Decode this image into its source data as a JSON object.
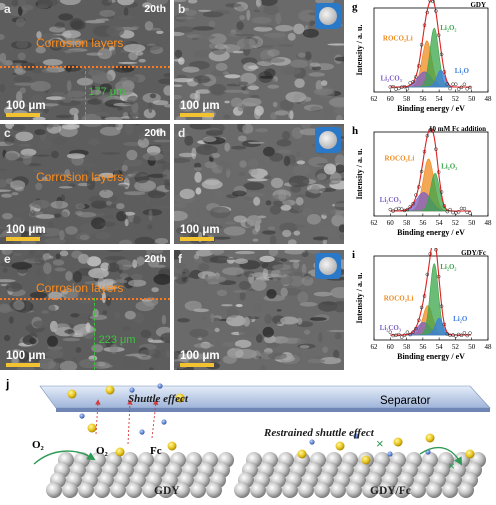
{
  "sem_panels": [
    {
      "label": "a",
      "cycle": "20th",
      "corrosion": "Corrosion layers",
      "thickness": "177 μm",
      "scale": "100 μm"
    },
    {
      "label": "b",
      "scale": "100 μm"
    },
    {
      "label": "c",
      "cycle": "20th",
      "corrosion": "Corrosion layers",
      "scale": "100 μm"
    },
    {
      "label": "d",
      "scale": "100 μm"
    },
    {
      "label": "e",
      "cycle": "20th",
      "corrosion": "Corrosion layers",
      "thickness": "223 μm",
      "scale": "100 μm"
    },
    {
      "label": "f",
      "scale": "100 μm"
    }
  ],
  "xps_panels": [
    {
      "label": "g",
      "condition": "GDY",
      "peaks": [
        "ROCO₂Li",
        "Li₂CO₃",
        "Li₂O₂",
        "Li₂O"
      ]
    },
    {
      "label": "h",
      "condition": "10 mM Fc addition",
      "peaks": [
        "ROCO₂Li",
        "Li₂CO₃",
        "Li₂O₂"
      ]
    },
    {
      "label": "i",
      "condition": "GDY/Fc",
      "peaks": [
        "ROCO₂Li",
        "Li₂CO₃",
        "Li₂O₂",
        "Li₂O"
      ]
    }
  ],
  "xps_axes": {
    "xlabel": "Binding energy / eV",
    "ylabel": "Intensity / a. u.",
    "xticks": [
      "62",
      "60",
      "58",
      "56",
      "54",
      "52",
      "50",
      "48"
    ],
    "xlim": [
      62,
      48
    ]
  },
  "xps_colors": {
    "ROCO2Li": "#f08a1c",
    "Li2CO3": "#7b5cc6",
    "Li2O2": "#3aa64a",
    "Li2O": "#3c7de0",
    "envelope": "#22b5c8",
    "fit": "#e02020"
  },
  "chart_data": [
    {
      "type": "line",
      "panel": "g",
      "title": "GDY",
      "xlabel": "Binding energy / eV",
      "ylabel": "Intensity / a. u.",
      "xlim": [
        62,
        48
      ],
      "series": [
        {
          "name": "ROCO₂Li",
          "center": 55.5,
          "height": 0.55,
          "width": 1.0
        },
        {
          "name": "Li₂CO₃",
          "center": 55.8,
          "height": 0.18,
          "width": 1.4
        },
        {
          "name": "Li₂O₂",
          "center": 54.6,
          "height": 0.7,
          "width": 0.9
        },
        {
          "name": "Li₂O",
          "center": 53.8,
          "height": 0.2,
          "width": 0.8
        }
      ]
    },
    {
      "type": "line",
      "panel": "h",
      "title": "10 mM Fc addition",
      "xlabel": "Binding energy / eV",
      "ylabel": "Intensity / a. u.",
      "xlim": [
        62,
        48
      ],
      "series": [
        {
          "name": "ROCO₂Li",
          "center": 55.3,
          "height": 0.62,
          "width": 1.1
        },
        {
          "name": "Li₂CO₃",
          "center": 55.9,
          "height": 0.22,
          "width": 1.5
        },
        {
          "name": "Li₂O₂",
          "center": 54.5,
          "height": 0.45,
          "width": 0.9
        }
      ]
    },
    {
      "type": "line",
      "panel": "i",
      "title": "GDY/Fc",
      "xlabel": "Binding energy / eV",
      "ylabel": "Intensity / a. u.",
      "xlim": [
        62,
        48
      ],
      "series": [
        {
          "name": "ROCO₂Li",
          "center": 55.4,
          "height": 0.35,
          "width": 1.0
        },
        {
          "name": "Li₂CO₃",
          "center": 55.9,
          "height": 0.15,
          "width": 1.3
        },
        {
          "name": "Li₂O₂",
          "center": 54.6,
          "height": 0.85,
          "width": 0.85
        },
        {
          "name": "Li₂O",
          "center": 54.0,
          "height": 0.2,
          "width": 0.8
        }
      ]
    }
  ],
  "schematic": {
    "label": "j",
    "separator": "Separator",
    "shuttle": "Shuttle effect",
    "restrained": "Restrained shuttle effect",
    "o2_left": "O₂",
    "o2_mid": "O₂",
    "fc": "Fc",
    "electrode_left": "GDY",
    "electrode_right": "GDY/Fc"
  }
}
